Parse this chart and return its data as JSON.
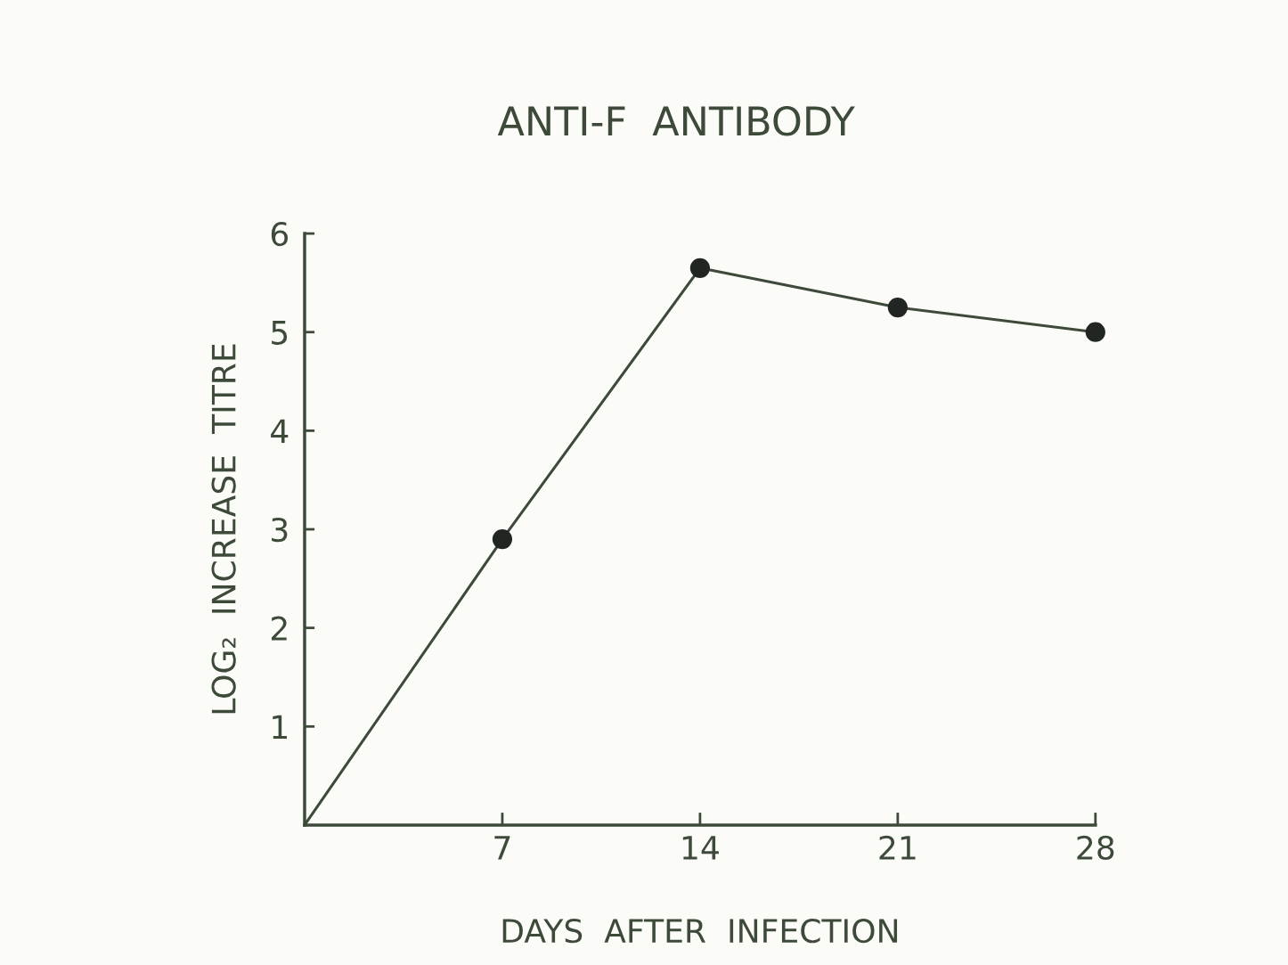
{
  "chart_data": {
    "type": "line",
    "title": "ANTI-F  ANTIBODY",
    "xlabel": "DAYS  AFTER  INFECTION",
    "ylabel": "LOG₂  INCREASE  TITRE",
    "series": [
      {
        "color": "#3d4a3a",
        "marker": "none",
        "x": [
          0,
          7,
          14,
          21,
          28
        ],
        "values": [
          0,
          2.9,
          5.65,
          5.25,
          5.0
        ]
      },
      {
        "type": "scatter",
        "color": "#222622",
        "marker": "circle",
        "x": [
          7,
          14,
          21,
          28
        ],
        "values": [
          2.9,
          5.65,
          5.25,
          5.0
        ]
      }
    ],
    "xlim": [
      0,
      28
    ],
    "xticks": [
      7,
      14,
      21,
      28
    ],
    "ylim": [
      0,
      6
    ],
    "yticks": [
      1,
      2,
      3,
      4,
      5,
      6
    ],
    "grid": false
  }
}
